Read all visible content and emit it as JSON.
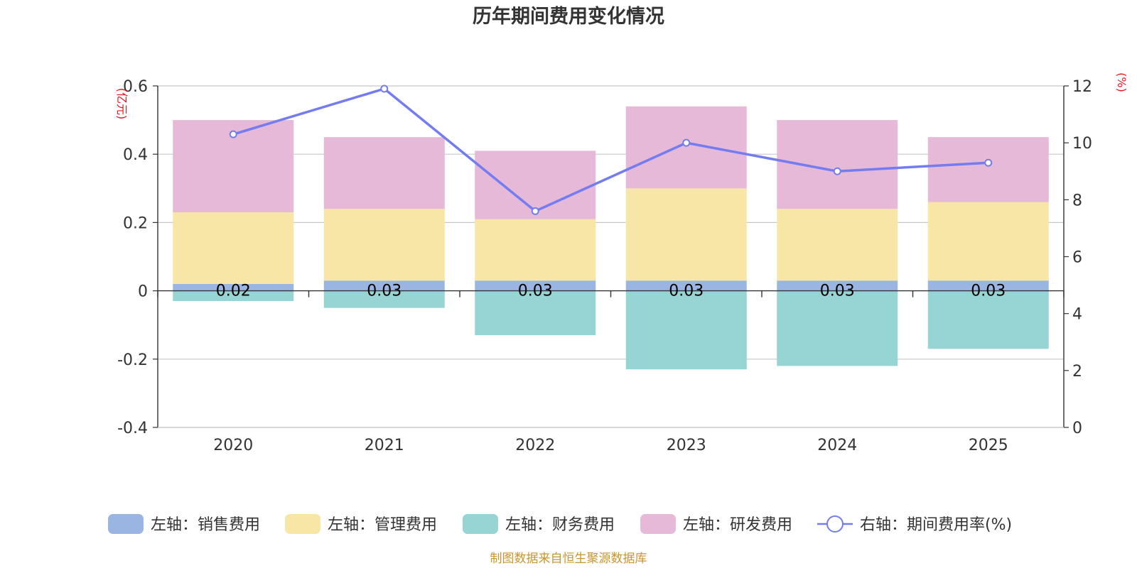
{
  "chart_data": {
    "type": "bar",
    "stacked": true,
    "title": "历年期间费用变化情况",
    "categories": [
      "2020",
      "2021",
      "2022",
      "2023",
      "2024",
      "2025"
    ],
    "series": [
      {
        "name": "左轴：销售费用",
        "axis": "left",
        "color": "#9bb5e2",
        "values": [
          0.02,
          0.03,
          0.03,
          0.03,
          0.03,
          0.03
        ],
        "labels": [
          "0.02",
          "0.03",
          "0.03",
          "0.03",
          "0.03",
          "0.03"
        ]
      },
      {
        "name": "左轴：管理费用",
        "axis": "left",
        "color": "#f8e6a7",
        "values": [
          0.21,
          0.21,
          0.18,
          0.27,
          0.21,
          0.23
        ]
      },
      {
        "name": "左轴：财务费用",
        "axis": "left",
        "color": "#97d4d4",
        "values": [
          -0.03,
          -0.05,
          -0.13,
          -0.23,
          -0.22,
          -0.17
        ]
      },
      {
        "name": "左轴：研发费用",
        "axis": "left",
        "color": "#e7b9d9",
        "values": [
          0.27,
          0.21,
          0.2,
          0.24,
          0.26,
          0.19
        ]
      },
      {
        "name": "右轴：期间费用率(%)",
        "axis": "right",
        "type": "line",
        "color": "#737cf0",
        "values": [
          10.3,
          11.9,
          7.6,
          10.0,
          9.0,
          9.3
        ]
      }
    ],
    "left_axis": {
      "unit": "(亿元)",
      "ylim": [
        -0.4,
        0.6
      ],
      "ticks": [
        -0.4,
        -0.2,
        0,
        0.2,
        0.4,
        0.6
      ],
      "tick_labels": [
        "-0.4",
        "-0.2",
        "0",
        "0.2",
        "0.4",
        "0.6"
      ]
    },
    "right_axis": {
      "unit": "(%)",
      "ylim": [
        0,
        12
      ],
      "ticks": [
        0,
        2,
        4,
        6,
        8,
        10,
        12
      ],
      "tick_labels": [
        "0",
        "2",
        "4",
        "6",
        "8",
        "10",
        "12"
      ]
    },
    "legend_position": "bottom",
    "grid": true
  },
  "footer": {
    "source": "制图数据来自恒生聚源数据库"
  }
}
